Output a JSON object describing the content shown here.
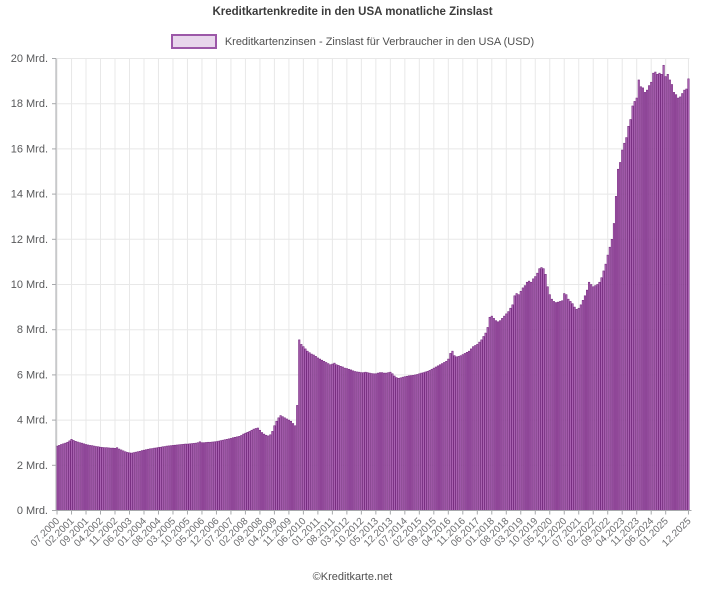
{
  "page": {
    "title": "Kreditkartenkredite in den USA monatliche Zinslast",
    "legend_label": "Kreditkartenzinsen - Zinslast für Verbraucher in den USA (USD)",
    "footer": "©Kreditkarte.net"
  },
  "colors": {
    "bar_fill": "#b06ab8",
    "bar_border": "#772c80",
    "legend_fill": "#e8d6ec",
    "legend_border": "#9c58a8",
    "grid": "#e8e8e8",
    "axis": "#a7a9ac",
    "y_label_text": "#58595b",
    "x_label_text": "#6d6e71",
    "title_text": "#3c3c3c"
  },
  "chart_data": {
    "type": "bar",
    "title": "Kreditkartenkredite in den USA monatliche Zinslast",
    "legend": "Kreditkartenzinsen - Zinslast für Verbraucher in den USA (USD)",
    "xlabel": "",
    "ylabel": "Mrd. USD",
    "unit": "Mrd. USD (billions)",
    "x_start": "07.2000",
    "x_end": "12.2025",
    "frequency": "monthly",
    "ylim": [
      0,
      20
    ],
    "ytick_step": 2,
    "ytick_suffix": " Mrd.",
    "grid": "on",
    "legend_position": "top-center",
    "x_ticks": [
      {
        "index": 0,
        "label": "07.2000"
      },
      {
        "index": 7,
        "label": "02.2001"
      },
      {
        "index": 14,
        "label": "09.2001"
      },
      {
        "index": 21,
        "label": "04.2002"
      },
      {
        "index": 28,
        "label": "11.2002"
      },
      {
        "index": 35,
        "label": "06.2003"
      },
      {
        "index": 42,
        "label": "01.2004"
      },
      {
        "index": 49,
        "label": "08.2004"
      },
      {
        "index": 56,
        "label": "03.2005"
      },
      {
        "index": 63,
        "label": "10.2005"
      },
      {
        "index": 70,
        "label": "05.2006"
      },
      {
        "index": 77,
        "label": "12.2006"
      },
      {
        "index": 84,
        "label": "07.2007"
      },
      {
        "index": 91,
        "label": "02.2008"
      },
      {
        "index": 98,
        "label": "09.2008"
      },
      {
        "index": 105,
        "label": "04.2009"
      },
      {
        "index": 112,
        "label": "11.2009"
      },
      {
        "index": 119,
        "label": "06.2010"
      },
      {
        "index": 126,
        "label": "01.2011"
      },
      {
        "index": 133,
        "label": "08.2011"
      },
      {
        "index": 140,
        "label": "03.2012"
      },
      {
        "index": 147,
        "label": "10.2012"
      },
      {
        "index": 154,
        "label": "05.2013"
      },
      {
        "index": 161,
        "label": "12.2013"
      },
      {
        "index": 168,
        "label": "07.2014"
      },
      {
        "index": 175,
        "label": "02.2015"
      },
      {
        "index": 182,
        "label": "09.2015"
      },
      {
        "index": 189,
        "label": "04.2016"
      },
      {
        "index": 196,
        "label": "11.2016"
      },
      {
        "index": 203,
        "label": "06.2017"
      },
      {
        "index": 210,
        "label": "01.2018"
      },
      {
        "index": 217,
        "label": "08.2018"
      },
      {
        "index": 224,
        "label": "03.2019"
      },
      {
        "index": 231,
        "label": "10.2019"
      },
      {
        "index": 238,
        "label": "05.2020"
      },
      {
        "index": 245,
        "label": "12.2020"
      },
      {
        "index": 252,
        "label": "07.2021"
      },
      {
        "index": 259,
        "label": "02.2022"
      },
      {
        "index": 266,
        "label": "09.2022"
      },
      {
        "index": 273,
        "label": "04.2023"
      },
      {
        "index": 280,
        "label": "11.2023"
      },
      {
        "index": 287,
        "label": "06.2024"
      },
      {
        "index": 294,
        "label": "01.2025"
      },
      {
        "index": 305,
        "label": "12.2025"
      }
    ],
    "values": [
      2.85,
      2.88,
      2.92,
      2.95,
      2.98,
      3.02,
      3.08,
      3.15,
      3.1,
      3.06,
      3.03,
      3.0,
      2.98,
      2.95,
      2.92,
      2.9,
      2.88,
      2.87,
      2.85,
      2.83,
      2.82,
      2.8,
      2.79,
      2.78,
      2.78,
      2.77,
      2.76,
      2.76,
      2.75,
      2.78,
      2.72,
      2.68,
      2.64,
      2.6,
      2.57,
      2.55,
      2.54,
      2.56,
      2.58,
      2.6,
      2.62,
      2.65,
      2.67,
      2.69,
      2.71,
      2.73,
      2.74,
      2.76,
      2.77,
      2.79,
      2.8,
      2.82,
      2.83,
      2.85,
      2.86,
      2.87,
      2.88,
      2.89,
      2.9,
      2.91,
      2.92,
      2.93,
      2.94,
      2.94,
      2.95,
      2.96,
      2.97,
      2.98,
      3.0,
      3.04,
      3.0,
      3.0,
      3.01,
      3.02,
      3.02,
      3.03,
      3.04,
      3.05,
      3.07,
      3.09,
      3.11,
      3.13,
      3.15,
      3.17,
      3.19,
      3.22,
      3.24,
      3.26,
      3.28,
      3.32,
      3.38,
      3.42,
      3.46,
      3.5,
      3.55,
      3.6,
      3.63,
      3.65,
      3.55,
      3.45,
      3.38,
      3.33,
      3.3,
      3.35,
      3.5,
      3.75,
      3.95,
      4.1,
      4.2,
      4.15,
      4.1,
      4.05,
      4.0,
      3.95,
      3.85,
      3.75,
      4.65,
      7.55,
      7.35,
      7.25,
      7.15,
      7.05,
      6.98,
      6.92,
      6.88,
      6.82,
      6.75,
      6.7,
      6.65,
      6.6,
      6.55,
      6.5,
      6.45,
      6.48,
      6.52,
      6.45,
      6.42,
      6.38,
      6.35,
      6.3,
      6.28,
      6.25,
      6.22,
      6.18,
      6.15,
      6.13,
      6.12,
      6.1,
      6.1,
      6.12,
      6.1,
      6.08,
      6.06,
      6.05,
      6.05,
      6.08,
      6.1,
      6.1,
      6.08,
      6.08,
      6.1,
      6.12,
      6.05,
      5.95,
      5.88,
      5.85,
      5.87,
      5.9,
      5.92,
      5.94,
      5.96,
      5.97,
      5.98,
      6.0,
      6.02,
      6.05,
      6.08,
      6.1,
      6.13,
      6.16,
      6.2,
      6.25,
      6.3,
      6.35,
      6.4,
      6.45,
      6.5,
      6.55,
      6.6,
      6.7,
      6.95,
      7.05,
      6.85,
      6.8,
      6.82,
      6.85,
      6.9,
      6.95,
      7.0,
      7.05,
      7.15,
      7.25,
      7.3,
      7.35,
      7.45,
      7.55,
      7.7,
      7.85,
      8.1,
      8.55,
      8.6,
      8.5,
      8.4,
      8.35,
      8.4,
      8.5,
      8.6,
      8.7,
      8.8,
      8.95,
      9.1,
      9.5,
      9.6,
      9.55,
      9.7,
      9.85,
      9.95,
      10.1,
      10.15,
      10.1,
      10.25,
      10.35,
      10.5,
      10.7,
      10.75,
      10.7,
      10.45,
      9.9,
      9.55,
      9.35,
      9.25,
      9.2,
      9.22,
      9.25,
      9.28,
      9.6,
      9.55,
      9.35,
      9.25,
      9.15,
      9.0,
      8.9,
      8.95,
      9.1,
      9.3,
      9.5,
      9.75,
      10.1,
      10.0,
      9.9,
      9.95,
      10.0,
      10.1,
      10.3,
      10.6,
      10.9,
      11.3,
      11.65,
      12.0,
      12.7,
      13.9,
      15.1,
      15.4,
      15.95,
      16.25,
      16.5,
      17.0,
      17.3,
      17.9,
      18.1,
      18.25,
      19.05,
      18.75,
      18.7,
      18.5,
      18.6,
      18.8,
      18.95,
      19.35,
      19.4,
      19.3,
      19.35,
      19.3,
      19.7,
      19.2,
      19.3,
      19.05,
      18.85,
      18.5,
      18.4,
      18.25,
      18.3,
      18.45,
      18.6,
      18.65,
      19.1
    ]
  }
}
